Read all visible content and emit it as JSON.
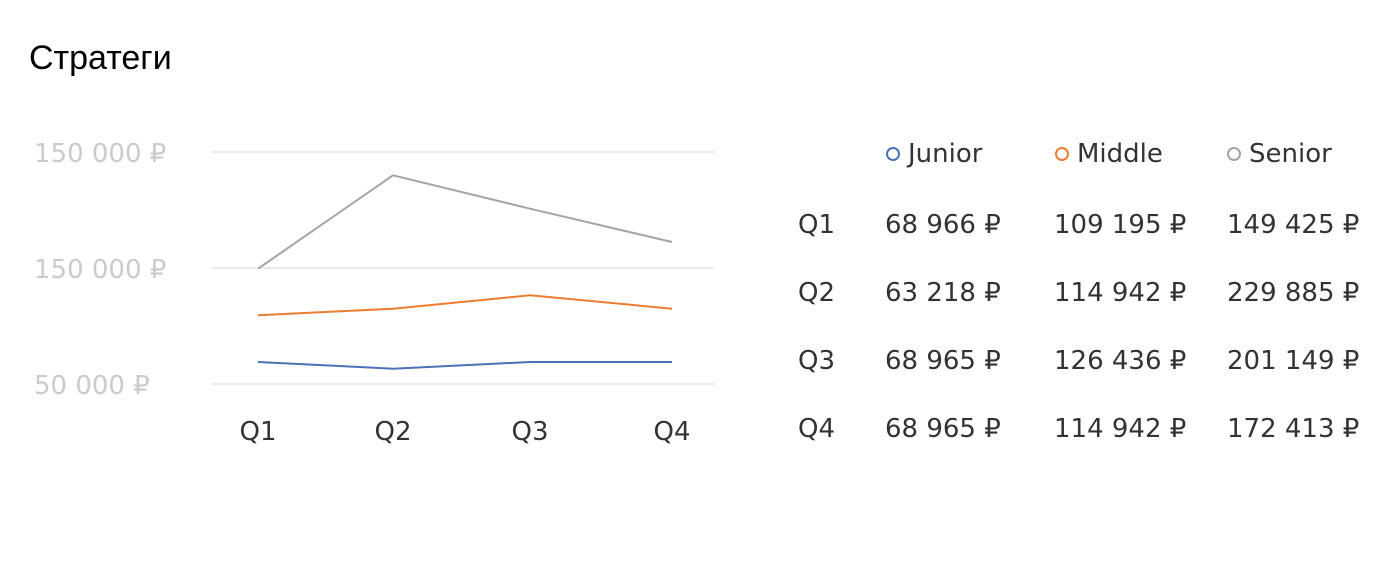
{
  "page": {
    "title": "Стратеги"
  },
  "chart_data": {
    "type": "line",
    "categories": [
      "Q1",
      "Q2",
      "Q3",
      "Q4"
    ],
    "y_ticks": [
      "150 000 ₽",
      "150 000 ₽",
      "50 000 ₽"
    ],
    "series": [
      {
        "name": "Junior",
        "color": "#4a72b8",
        "values": [
          68966,
          63218,
          68965,
          68965
        ]
      },
      {
        "name": "Middle",
        "color": "#ed7d31",
        "values": [
          109195,
          114942,
          126436,
          114942
        ]
      },
      {
        "name": "Senior",
        "color": "#a5a5a5",
        "values": [
          149425,
          229885,
          201149,
          172413
        ]
      }
    ],
    "ylim": [
      50000,
      250000
    ],
    "grid": true,
    "legend_position": "top-right"
  },
  "table": {
    "rows": [
      {
        "label": "Q1",
        "values": [
          "68 966 ₽",
          "109 195 ₽",
          "149 425 ₽"
        ]
      },
      {
        "label": "Q2",
        "values": [
          "63 218 ₽",
          "114 942 ₽",
          "229 885 ₽"
        ]
      },
      {
        "label": "Q3",
        "values": [
          "68 965 ₽",
          "126 436 ₽",
          "201 149 ₽"
        ]
      },
      {
        "label": "Q4",
        "values": [
          "68 965 ₽",
          "114 942 ₽",
          "172 413 ₽"
        ]
      }
    ]
  }
}
